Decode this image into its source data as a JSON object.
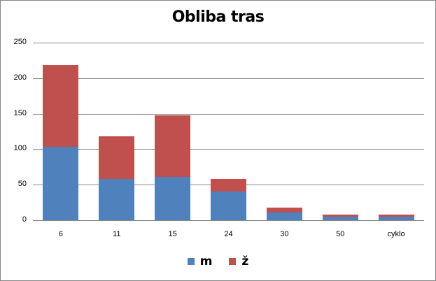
{
  "chart_data": {
    "type": "bar",
    "stacked": true,
    "title": "Obliba tras",
    "xlabel": "",
    "ylabel": "",
    "categories": [
      "6",
      "11",
      "15",
      "24",
      "30",
      "50",
      "cyklo"
    ],
    "series": [
      {
        "name": "m",
        "color": "#4F81BD",
        "values": [
          103,
          58,
          61,
          40,
          11,
          5,
          5
        ]
      },
      {
        "name": "ž",
        "color": "#C0504D",
        "values": [
          116,
          60,
          87,
          18,
          7,
          3,
          3
        ]
      }
    ],
    "totals": [
      219,
      118,
      148,
      58,
      18,
      8,
      8
    ],
    "ylim": [
      0,
      250
    ],
    "yticks": [
      0,
      50,
      100,
      150,
      200,
      250
    ],
    "grid": true,
    "legend_position": "bottom"
  },
  "legend": [
    {
      "label": "m",
      "color": "#4F81BD"
    },
    {
      "label": "ž",
      "color": "#C0504D"
    }
  ]
}
